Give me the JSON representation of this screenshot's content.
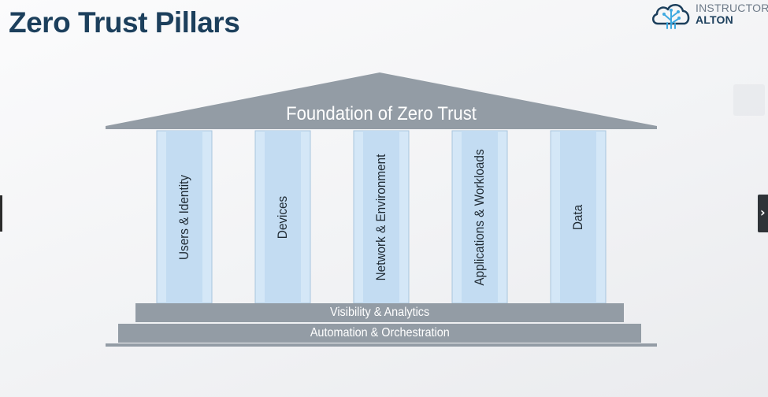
{
  "slide": {
    "title": "Zero Trust Pillars"
  },
  "brand": {
    "line1": "INSTRUCTOR",
    "line2": "ALTON",
    "logo_icon": "cloud-circuit-tree-icon"
  },
  "diagram": {
    "roof_label": "Foundation of Zero Trust",
    "pillars": [
      {
        "label": "Users & Identity"
      },
      {
        "label": "Devices"
      },
      {
        "label": "Network & Environment"
      },
      {
        "label": "Applications & Workloads"
      },
      {
        "label": "Data"
      }
    ],
    "steps": [
      {
        "label": "Visibility & Analytics"
      },
      {
        "label": "Automation & Orchestration"
      }
    ],
    "colors": {
      "structure": "#939ca5",
      "pillar_fill": "#d4e7f7",
      "pillar_core": "#c3dcf2",
      "title": "#1c3f5c"
    }
  },
  "overlay": {
    "next_arrow_glyph": "›"
  }
}
